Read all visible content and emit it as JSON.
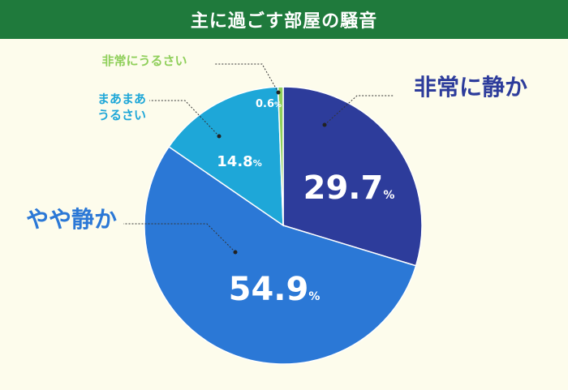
{
  "header": {
    "title": "主に過ごす部屋の騒音"
  },
  "chart_data": {
    "type": "pie",
    "title": "主に過ごす部屋の騒音",
    "start": "12 o'clock",
    "direction": "clockwise",
    "slices": [
      {
        "category": "非常に静か",
        "value": 29.7,
        "value_label": "29.7",
        "unit": "%",
        "color": "#2d3c9b",
        "label_color": "#2d3c9b"
      },
      {
        "category": "やや静か",
        "value": 54.9,
        "value_label": "54.9",
        "unit": "%",
        "color": "#2b78d6",
        "label_color": "#2b78d6"
      },
      {
        "category": "まあまあうるさい",
        "category_lines": [
          "まあまあ",
          "うるさい"
        ],
        "value": 14.8,
        "value_label": "14.8",
        "unit": "%",
        "color": "#1ea7d8",
        "label_color": "#1ea7d8"
      },
      {
        "category": "非常にうるさい",
        "value": 0.6,
        "value_label": "0.6",
        "unit": "%",
        "color": "#8fcf5a",
        "label_color": "#8fcf5a"
      }
    ]
  }
}
